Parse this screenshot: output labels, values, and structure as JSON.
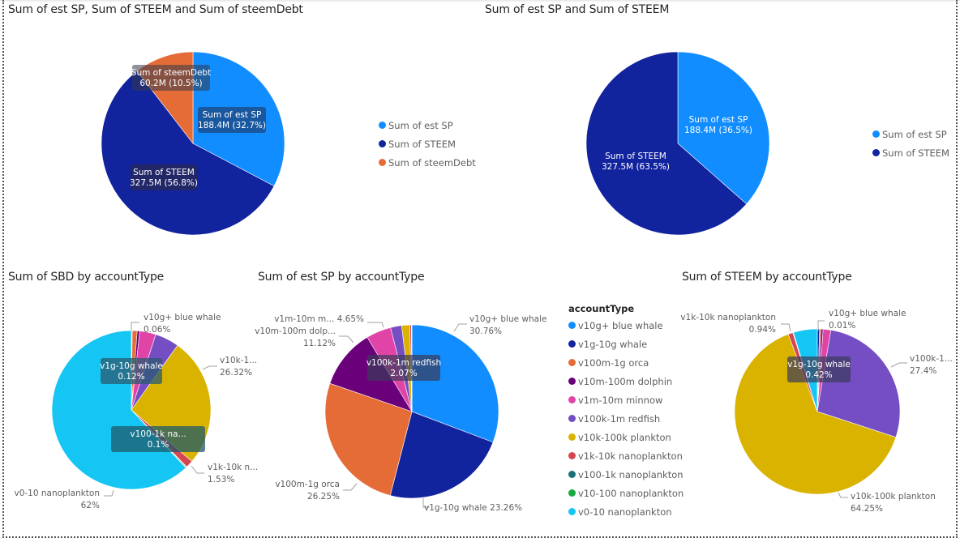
{
  "chart_data": [
    {
      "id": "c1",
      "type": "pie",
      "title": "Sum of est SP, Sum of STEEM and Sum of steemDebt",
      "categories": [
        "Sum of est SP",
        "Sum of STEEM",
        "Sum of steemDebt"
      ],
      "values": [
        188.4,
        327.5,
        60.2
      ],
      "unit": "M",
      "colors": [
        "#118DFF",
        "#12239E",
        "#E66C37"
      ],
      "data_labels": [
        {
          "name": "Sum of est SP",
          "value": "188.4M (32.7%)"
        },
        {
          "name": "Sum of STEEM",
          "value": "327.5M (56.8%)"
        },
        {
          "name": "Sum of steemDebt",
          "value": "60.2M (10.5%)"
        }
      ],
      "legend": "right"
    },
    {
      "id": "c2",
      "type": "pie",
      "title": "Sum of est SP and Sum of STEEM",
      "categories": [
        "Sum of est SP",
        "Sum of STEEM"
      ],
      "values": [
        188.4,
        327.5
      ],
      "unit": "M",
      "colors": [
        "#118DFF",
        "#12239E"
      ],
      "data_labels": [
        {
          "name": "Sum of est SP",
          "value": "188.4M (36.5%)"
        },
        {
          "name": "Sum of STEEM",
          "value": "327.5M (63.5%)"
        }
      ],
      "legend": "right"
    },
    {
      "id": "c3",
      "type": "pie",
      "title": "Sum of SBD by accountType",
      "categories": [
        "v10g+ blue whale",
        "v1g-10g whale",
        "v100m-1g orca",
        "v10m-100m dolphin",
        "v1m-10m minnow",
        "v100k-1m redfish",
        "v10k-100k plankton",
        "v1k-10k nanoplankton",
        "v100-1k nanoplankton",
        "v10-100 nanoplankton",
        "v0-10 nanoplankton"
      ],
      "values": [
        0.06,
        0.12,
        1.0,
        0.5,
        3.3,
        4.9,
        26.32,
        1.53,
        0.1,
        0.17,
        62
      ],
      "labels": [
        {
          "text": "v10g+ blue whale",
          "pct": "0.06%"
        },
        {
          "text": "v1g-10g whale",
          "pct": "0.12%"
        },
        {
          "text": "v10k-1...",
          "pct": "26.32%"
        },
        {
          "text": "v100-1k na...",
          "pct": "0.1%"
        },
        {
          "text": "v1k-10k n...",
          "pct": "1.53%"
        },
        {
          "text": "v0-10 nanoplankton",
          "pct": "62%"
        }
      ]
    },
    {
      "id": "c4",
      "type": "pie",
      "title": "Sum of est SP by accountType",
      "categories": [
        "v10g+ blue whale",
        "v1g-10g whale",
        "v100m-1g orca",
        "v10m-100m dolphin",
        "v1m-10m minnow",
        "v100k-1m redfish",
        "v10k-100k plankton",
        "v1k-10k nanoplankton",
        "v100-1k nanoplankton",
        "v10-100 nanoplankton",
        "v0-10 nanoplankton"
      ],
      "values": [
        30.76,
        23.26,
        26.25,
        11.12,
        4.65,
        2.07,
        1.5,
        0.3,
        0.05,
        0.01,
        0.03
      ],
      "labels": [
        {
          "text": "v10g+ blue whale",
          "pct": "30.76%"
        },
        {
          "text": "v1g-10g whale",
          "pct": "23.26%"
        },
        {
          "text": "v100m-1g orca",
          "pct": "26.25%"
        },
        {
          "text": "v10m-100m dolp...",
          "pct": "11.12%"
        },
        {
          "text": "v1m-10m m...",
          "pct": "4.65%"
        },
        {
          "text": "v100k-1m redfish",
          "pct": "2.07%"
        }
      ]
    },
    {
      "id": "c5",
      "type": "pie",
      "title": "Sum of STEEM by accountType",
      "categories": [
        "v10g+ blue whale",
        "v1g-10g whale",
        "v100m-1g orca",
        "v10m-100m dolphin",
        "v1m-10m minnow",
        "v100k-1m redfish",
        "v10k-100k plankton",
        "v1k-10k nanoplankton",
        "v100-1k nanoplankton",
        "v10-100 nanoplankton",
        "v0-10 nanoplankton"
      ],
      "values": [
        0.01,
        0.42,
        0.3,
        0.4,
        1.5,
        27.4,
        64.25,
        0.94,
        0.1,
        0.02,
        4.66
      ],
      "labels": [
        {
          "text": "v10g+ blue whale",
          "pct": "0.01%"
        },
        {
          "text": "v1g-10g whale",
          "pct": "0.42%"
        },
        {
          "text": "v100k-1...",
          "pct": "27.4%"
        },
        {
          "text": "v10k-100k plankton",
          "pct": "64.25%"
        },
        {
          "text": "v1k-10k nanoplankton",
          "pct": "0.94%"
        }
      ]
    }
  ],
  "legends": {
    "top_left": [
      "Sum of est SP",
      "Sum of STEEM",
      "Sum of steemDebt"
    ],
    "top_right": [
      "Sum of est SP",
      "Sum of STEEM"
    ],
    "account_type": {
      "title": "accountType",
      "items": [
        {
          "label": "v10g+ blue whale",
          "color": "#118DFF"
        },
        {
          "label": "v1g-10g whale",
          "color": "#12239E"
        },
        {
          "label": "v100m-1g orca",
          "color": "#E66C37"
        },
        {
          "label": "v10m-100m dolphin",
          "color": "#6B007B"
        },
        {
          "label": "v1m-10m minnow",
          "color": "#E044A7"
        },
        {
          "label": "v100k-1m redfish",
          "color": "#744EC2"
        },
        {
          "label": "v10k-100k plankton",
          "color": "#D9B300"
        },
        {
          "label": "v1k-10k nanoplankton",
          "color": "#D64550"
        },
        {
          "label": "v100-1k nanoplankton",
          "color": "#197278"
        },
        {
          "label": "v10-100 nanoplankton",
          "color": "#1AAB40"
        },
        {
          "label": "v0-10 nanoplankton",
          "color": "#15C6F4"
        }
      ]
    }
  }
}
